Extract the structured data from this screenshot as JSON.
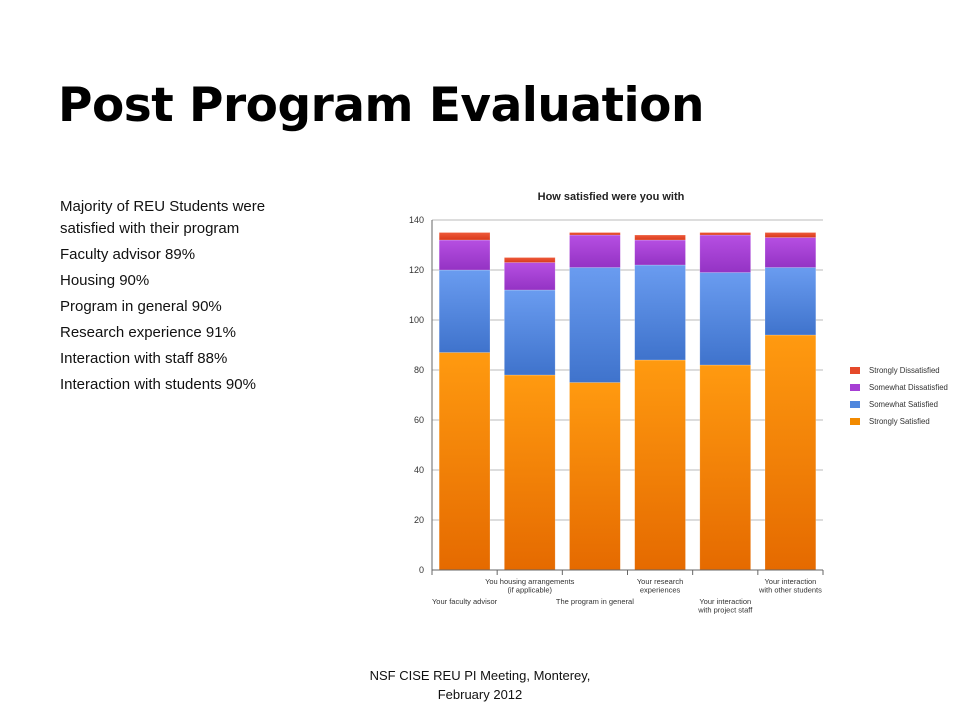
{
  "slide": {
    "title": "Post Program Evaluation",
    "bullets": [
      "Majority of REU Students were satisfied with their program",
      "Faculty advisor 89%",
      "Housing 90%",
      "Program in general 90%",
      "Research experience 91%",
      "Interaction with staff 88%",
      "Interaction with students 90%"
    ],
    "footer": [
      "NSF CISE REU PI Meeting, Monterey,",
      "February 2012"
    ]
  },
  "chart_data": {
    "type": "bar",
    "stacked": true,
    "title": "How satisfied were you with",
    "xlabel": "",
    "ylabel": "",
    "ylim": [
      0,
      140
    ],
    "yticks": [
      0,
      20,
      40,
      60,
      80,
      100,
      120,
      140
    ],
    "grid": true,
    "legend_position": "right",
    "categories": [
      [
        "Your faculty advisor"
      ],
      [
        "You housing arrangements",
        "(if applicable)"
      ],
      [
        "The program in general"
      ],
      [
        "Your research",
        "experiences"
      ],
      [
        "Your interaction",
        "with project staff"
      ],
      [
        "Your interaction",
        "with other students"
      ]
    ],
    "series": [
      {
        "name": "Strongly Satisfied",
        "color": "#f28a00",
        "values": [
          87,
          78,
          75,
          84,
          82,
          94
        ]
      },
      {
        "name": "Somewhat Satisfied",
        "color": "#4f86dd",
        "values": [
          33,
          34,
          46,
          38,
          37,
          27
        ]
      },
      {
        "name": "Somewhat Dissatisfied",
        "color": "#a63ed4",
        "values": [
          12,
          11,
          13,
          10,
          15,
          12
        ]
      },
      {
        "name": "Strongly Dissatisfied",
        "color": "#e5492a",
        "values": [
          3,
          2,
          1,
          2,
          1,
          2
        ]
      }
    ],
    "legend_order": [
      "Strongly Dissatisfied",
      "Somewhat Dissatisfied",
      "Somewhat Satisfied",
      "Strongly Satisfied"
    ]
  }
}
